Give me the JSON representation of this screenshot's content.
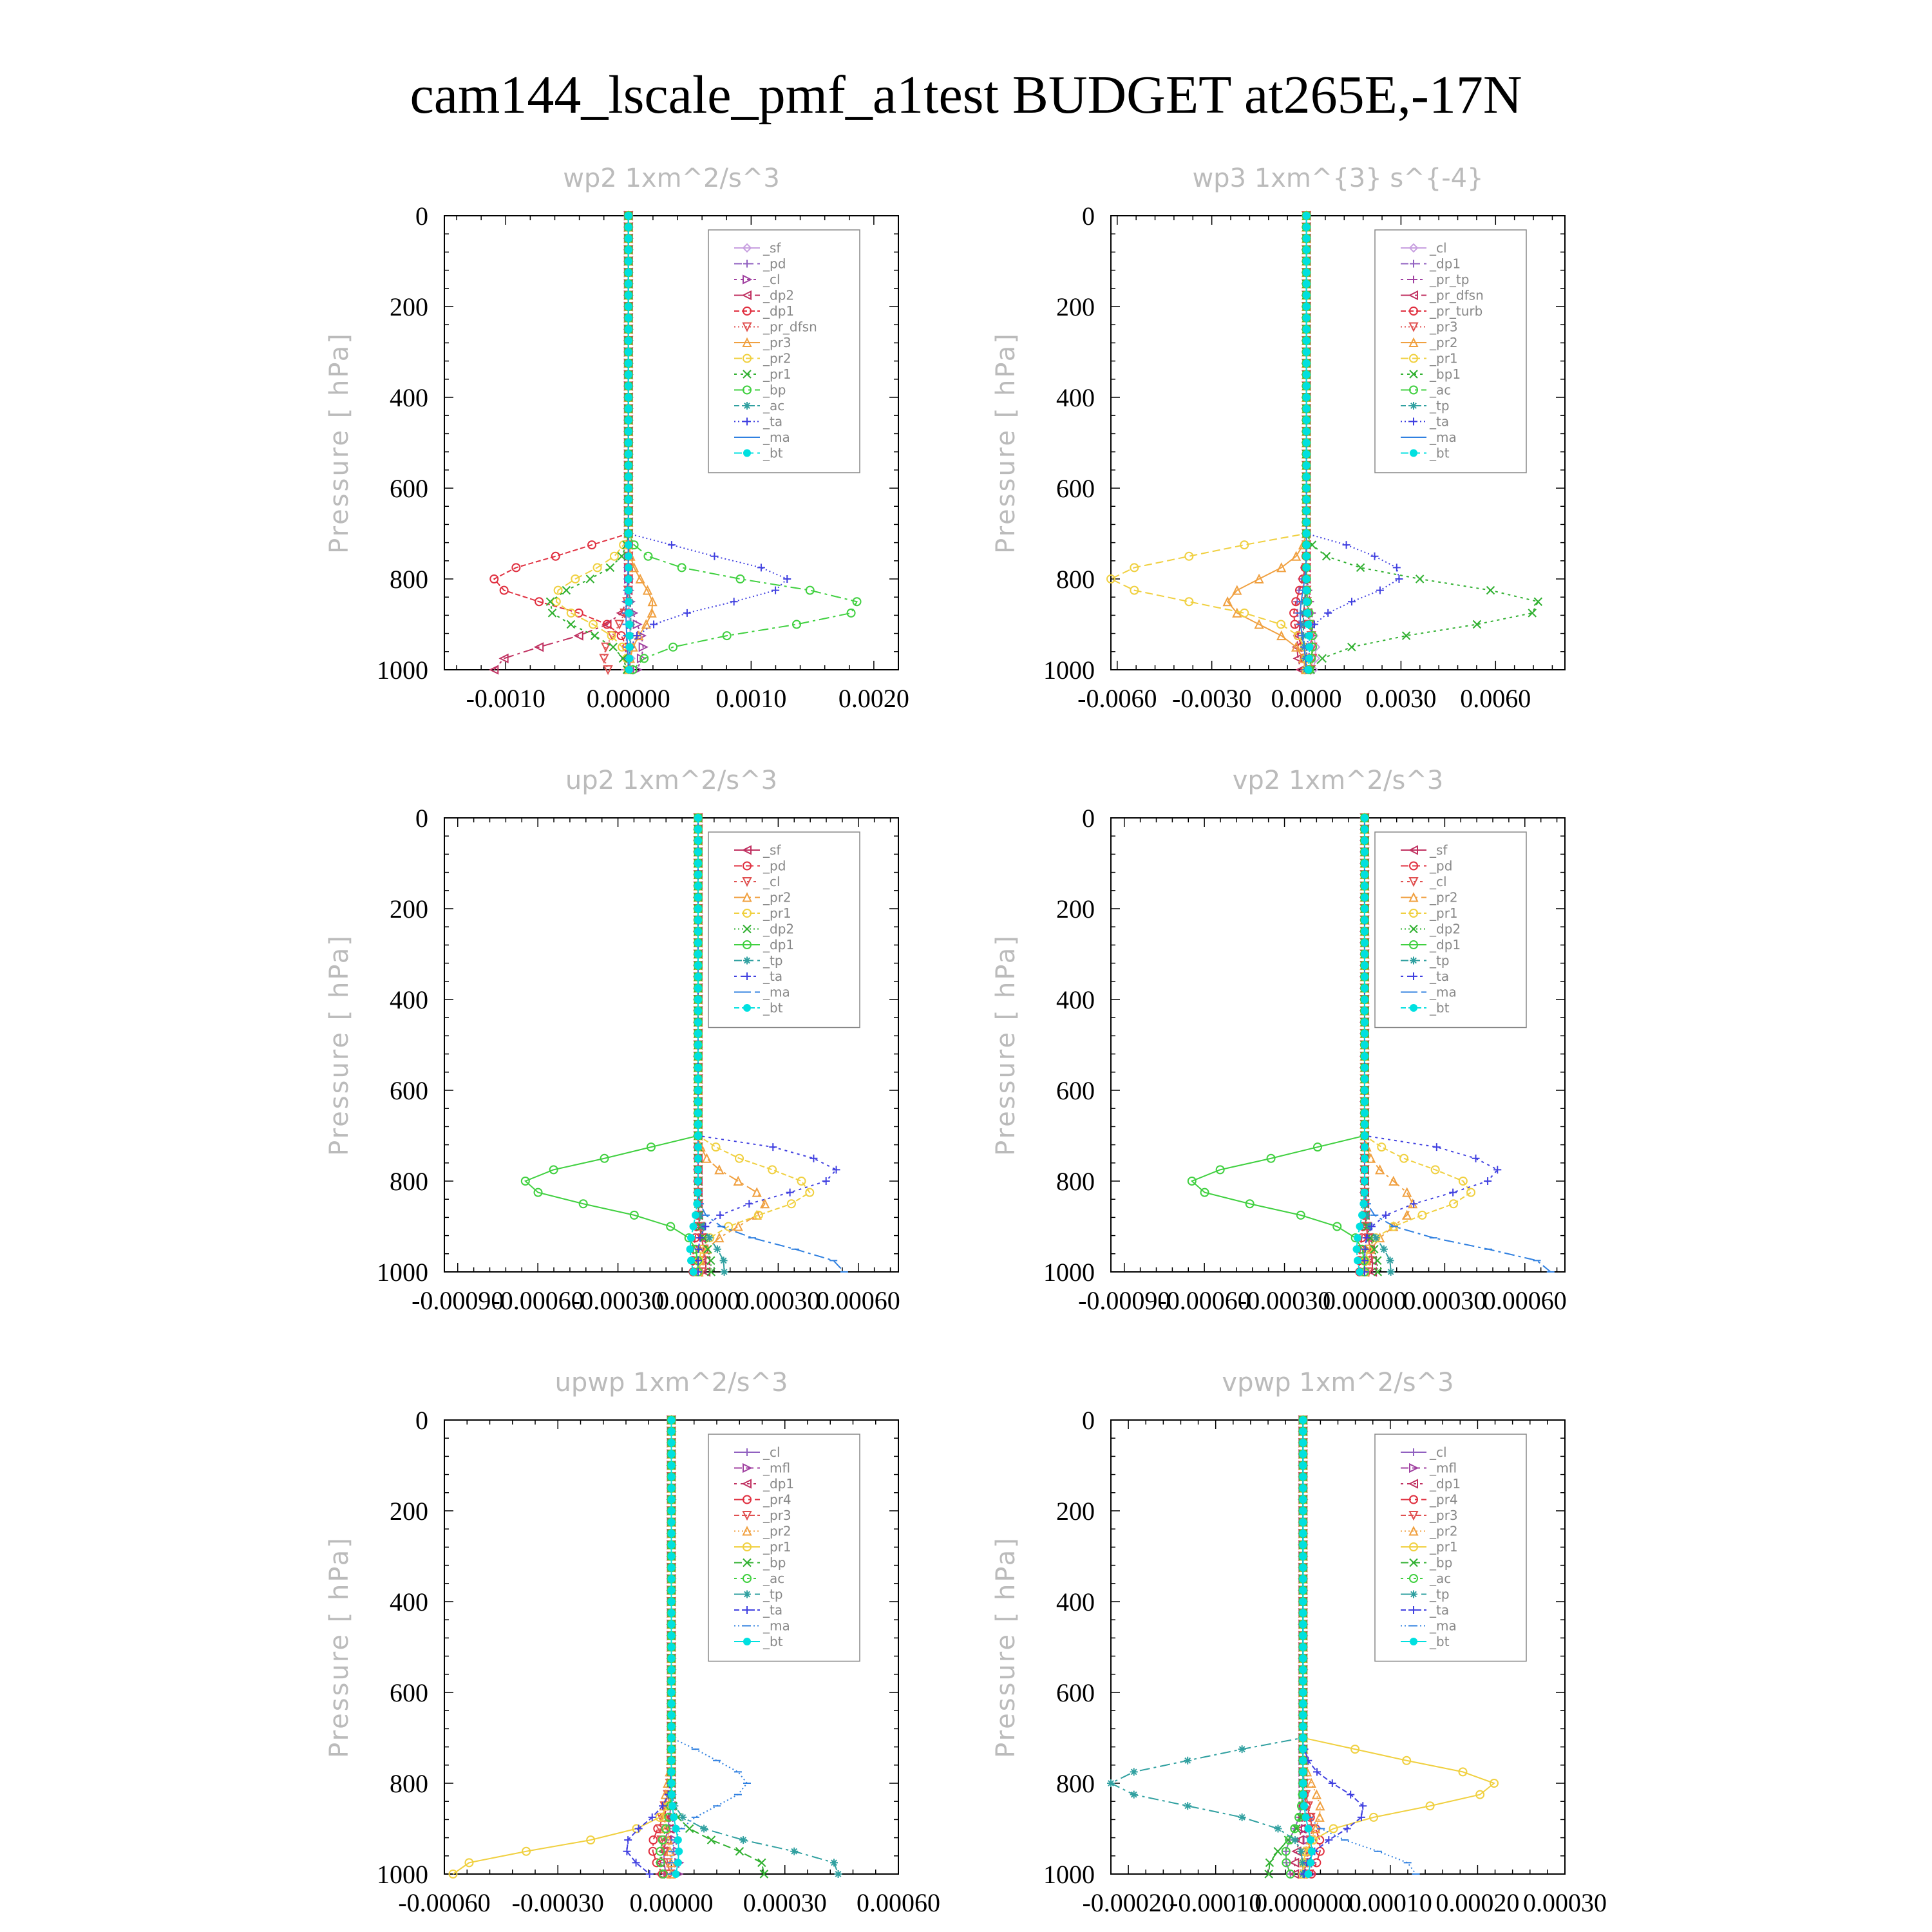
{
  "figure": {
    "title": "cam144_lscale_pmf_a1test  BUDGET at265E,-17N"
  },
  "chart_data": [
    {
      "type": "line",
      "title": "wp2   1xm^2/s^3",
      "ylabel": "Pressure  [ hPa]",
      "ylim": [
        1000,
        0
      ],
      "yticks": [
        "0",
        "200",
        "400",
        "600",
        "800",
        "1000"
      ],
      "xlim": [
        -0.0015,
        0.0022
      ],
      "xticks": [
        -0.001,
        0.0,
        0.001,
        0.002
      ],
      "xtick_labels": [
        "-0.0010",
        "0.00000",
        "0.0010",
        "0.0020"
      ],
      "legend_position": "top-right",
      "series": [
        {
          "name": "_sf",
          "color": "#c8a0e0",
          "marker": "diamond",
          "peak_x": 2e-05,
          "peak_p": 960
        },
        {
          "name": "_pd",
          "color": "#9060c0",
          "marker": "plus",
          "peak_x": -3e-05,
          "peak_p": 990
        },
        {
          "name": "_cl",
          "color": "#a040a0",
          "marker": "tri-right",
          "peak_x": 0.00012,
          "peak_p": 950
        },
        {
          "name": "_dp2",
          "color": "#c03060",
          "marker": "tri-left",
          "peak_x": -0.0011,
          "peak_p": 995
        },
        {
          "name": "_dp1",
          "color": "#e03040",
          "marker": "circle",
          "peak_x": -0.0011,
          "peak_p": 805
        },
        {
          "name": "_pr_dfsn",
          "color": "#e05050",
          "marker": "tri-down",
          "peak_x": -0.0002,
          "peak_p": 970
        },
        {
          "name": "_pr3",
          "color": "#f0a040",
          "marker": "tri-up",
          "peak_x": 0.0002,
          "peak_p": 860
        },
        {
          "name": "_pr2",
          "color": "#f0d040",
          "marker": "circle",
          "peak_x": -0.0006,
          "peak_p": 840
        },
        {
          "name": "_pr1",
          "color": "#30b030",
          "marker": "cross",
          "peak_x": -0.00065,
          "peak_p": 860
        },
        {
          "name": "_bp",
          "color": "#40d040",
          "marker": "circle",
          "peak_x": 0.0019,
          "peak_p": 860
        },
        {
          "name": "_ac",
          "color": "#30a0a0",
          "marker": "star",
          "peak_x": 2e-05,
          "peak_p": 900
        },
        {
          "name": "_ta",
          "color": "#4040e0",
          "marker": "plus",
          "peak_x": 0.0013,
          "peak_p": 805
        },
        {
          "name": "_ma",
          "color": "#3080e0",
          "marker": "dash",
          "peak_x": -2e-05,
          "peak_p": 880
        },
        {
          "name": "_bt",
          "color": "#00e0e0",
          "marker": "dot",
          "peak_x": 1e-05,
          "peak_p": 950
        }
      ]
    },
    {
      "type": "line",
      "title": "wp3   1xm^{3} s^{-4}",
      "ylabel": "Pressure  [ hPa]",
      "ylim": [
        1000,
        0
      ],
      "yticks": [
        "0",
        "200",
        "400",
        "600",
        "800",
        "1000"
      ],
      "xlim": [
        -0.0062,
        0.0082
      ],
      "xticks": [
        -0.006,
        -0.003,
        0.0,
        0.003,
        0.006
      ],
      "xtick_labels": [
        "-0.0060",
        "-0.0030",
        "0.0000",
        "0.0030",
        "0.0060"
      ],
      "legend_position": "top-right",
      "series": [
        {
          "name": "_cl",
          "color": "#c8a0e0",
          "marker": "diamond",
          "peak_x": 0.0003,
          "peak_p": 960
        },
        {
          "name": "_dp1",
          "color": "#9060c0",
          "marker": "plus",
          "peak_x": -0.0003,
          "peak_p": 860
        },
        {
          "name": "_pr_tp",
          "color": "#a040a0",
          "marker": "plus",
          "peak_x": 0.0002,
          "peak_p": 900
        },
        {
          "name": "_pr_dfsn",
          "color": "#c03060",
          "marker": "tri-left",
          "peak_x": -0.0003,
          "peak_p": 950
        },
        {
          "name": "_pr_turb",
          "color": "#e03040",
          "marker": "circle",
          "peak_x": -0.0004,
          "peak_p": 880
        },
        {
          "name": "_pr3",
          "color": "#e05050",
          "marker": "tri-down",
          "peak_x": 0.0002,
          "peak_p": 960
        },
        {
          "name": "_pr2",
          "color": "#f0a040",
          "marker": "tri-up",
          "peak_x": -0.0025,
          "peak_p": 850
        },
        {
          "name": "_pr1",
          "color": "#f0d040",
          "marker": "circle",
          "peak_x": -0.0062,
          "peak_p": 800
        },
        {
          "name": "_bp1",
          "color": "#30b030",
          "marker": "cross",
          "peak_x": 0.0075,
          "peak_p": 860
        },
        {
          "name": "_ac",
          "color": "#40d040",
          "marker": "circle",
          "peak_x": 0.0002,
          "peak_p": 940
        },
        {
          "name": "_tp",
          "color": "#30a0a0",
          "marker": "star",
          "peak_x": -0.0001,
          "peak_p": 900
        },
        {
          "name": "_ta",
          "color": "#4040e0",
          "marker": "plus",
          "peak_x": 0.003,
          "peak_p": 790
        },
        {
          "name": "_ma",
          "color": "#3080e0",
          "marker": "dash",
          "peak_x": -0.0002,
          "peak_p": 880
        },
        {
          "name": "_bt",
          "color": "#00e0e0",
          "marker": "dot",
          "peak_x": 0.0001,
          "peak_p": 950
        }
      ]
    },
    {
      "type": "line",
      "title": "up2   1xm^2/s^3",
      "ylabel": "Pressure  [ hPa]",
      "ylim": [
        1000,
        0
      ],
      "yticks": [
        "0",
        "200",
        "400",
        "600",
        "800",
        "1000"
      ],
      "xlim": [
        -0.00095,
        0.00075
      ],
      "xticks": [
        -0.0009,
        -0.0006,
        -0.0003,
        0.0,
        0.0003,
        0.0006
      ],
      "xtick_labels": [
        "-0.00090",
        "-0.00060",
        "-0.00030",
        "0.00000",
        "0.00030",
        "0.00060"
      ],
      "legend_position": "top-right",
      "series": [
        {
          "name": "_sf",
          "color": "#c03060",
          "marker": "tri-left",
          "peak_x": 3e-05,
          "peak_p": 990
        },
        {
          "name": "_pd",
          "color": "#e03040",
          "marker": "circle",
          "peak_x": -2e-05,
          "peak_p": 980
        },
        {
          "name": "_cl",
          "color": "#e05050",
          "marker": "tri-down",
          "peak_x": 2e-05,
          "peak_p": 960
        },
        {
          "name": "_pr2",
          "color": "#f0a040",
          "marker": "tri-up",
          "peak_x": 0.00025,
          "peak_p": 850
        },
        {
          "name": "_pr1",
          "color": "#f0d040",
          "marker": "circle",
          "peak_x": 0.00042,
          "peak_p": 820
        },
        {
          "name": "_dp2",
          "color": "#30b030",
          "marker": "cross",
          "peak_x": 5e-05,
          "peak_p": 990
        },
        {
          "name": "_dp1",
          "color": "#40d040",
          "marker": "circle",
          "peak_x": -0.00065,
          "peak_p": 805
        },
        {
          "name": "_tp",
          "color": "#30a0a0",
          "marker": "star",
          "peak_x": 0.0001,
          "peak_p": 990
        },
        {
          "name": "_ta",
          "color": "#4040e0",
          "marker": "plus",
          "peak_x": 0.00052,
          "peak_p": 780
        },
        {
          "name": "_ma",
          "color": "#3080e0",
          "marker": "dash",
          "peak_x": 0.00055,
          "peak_p": 995
        },
        {
          "name": "_bt",
          "color": "#00e0e0",
          "marker": "dot",
          "peak_x": -3e-05,
          "peak_p": 950
        }
      ]
    },
    {
      "type": "line",
      "title": "vp2   1xm^2/s^3",
      "ylabel": "Pressure  [ hPa]",
      "ylim": [
        1000,
        0
      ],
      "yticks": [
        "0",
        "200",
        "400",
        "600",
        "800",
        "1000"
      ],
      "xlim": [
        -0.00095,
        0.00075
      ],
      "xticks": [
        -0.0009,
        -0.0006,
        -0.0003,
        0.0,
        0.0003,
        0.0006
      ],
      "xtick_labels": [
        "-0.00090",
        "-0.00060",
        "-0.00030",
        "0.00000",
        "0.00030",
        "0.00060"
      ],
      "legend_position": "top-right",
      "series": [
        {
          "name": "_sf",
          "color": "#c03060",
          "marker": "tri-left",
          "peak_x": 3e-05,
          "peak_p": 990
        },
        {
          "name": "_pd",
          "color": "#e03040",
          "marker": "circle",
          "peak_x": -2e-05,
          "peak_p": 980
        },
        {
          "name": "_cl",
          "color": "#e05050",
          "marker": "tri-down",
          "peak_x": 2e-05,
          "peak_p": 960
        },
        {
          "name": "_pr2",
          "color": "#f0a040",
          "marker": "tri-up",
          "peak_x": 0.00018,
          "peak_p": 850
        },
        {
          "name": "_pr1",
          "color": "#f0d040",
          "marker": "circle",
          "peak_x": 0.0004,
          "peak_p": 820
        },
        {
          "name": "_dp2",
          "color": "#30b030",
          "marker": "cross",
          "peak_x": 5e-05,
          "peak_p": 990
        },
        {
          "name": "_dp1",
          "color": "#40d040",
          "marker": "circle",
          "peak_x": -0.00065,
          "peak_p": 805
        },
        {
          "name": "_tp",
          "color": "#30a0a0",
          "marker": "star",
          "peak_x": 0.0001,
          "peak_p": 990
        },
        {
          "name": "_ta",
          "color": "#4040e0",
          "marker": "plus",
          "peak_x": 0.0005,
          "peak_p": 780
        },
        {
          "name": "_ma",
          "color": "#3080e0",
          "marker": "dash",
          "peak_x": 0.0007,
          "peak_p": 995
        },
        {
          "name": "_bt",
          "color": "#00e0e0",
          "marker": "dot",
          "peak_x": -3e-05,
          "peak_p": 950
        }
      ]
    },
    {
      "type": "line",
      "title": "upwp   1xm^2/s^3",
      "ylabel": "Pressure  [ hPa]",
      "ylim": [
        1000,
        0
      ],
      "yticks": [
        "0",
        "200",
        "400",
        "600",
        "800",
        "1000"
      ],
      "xlim": [
        -0.0006,
        0.0006
      ],
      "xticks": [
        -0.0006,
        -0.0003,
        0.0,
        0.0003,
        0.0006
      ],
      "xtick_labels": [
        "-0.00060",
        "-0.00030",
        "0.00000",
        "0.00030",
        "0.00060"
      ],
      "legend_position": "top-right",
      "series": [
        {
          "name": "_cl",
          "color": "#9060c0",
          "marker": "plus",
          "peak_x": -2e-05,
          "peak_p": 960
        },
        {
          "name": "_mfl",
          "color": "#a040a0",
          "marker": "tri-right",
          "peak_x": 2e-05,
          "peak_p": 980
        },
        {
          "name": "_dp1",
          "color": "#c03060",
          "marker": "tri-left",
          "peak_x": -3e-05,
          "peak_p": 990
        },
        {
          "name": "_pr4",
          "color": "#e03040",
          "marker": "circle",
          "peak_x": -5e-05,
          "peak_p": 940
        },
        {
          "name": "_pr3",
          "color": "#e05050",
          "marker": "tri-down",
          "peak_x": -3e-05,
          "peak_p": 900
        },
        {
          "name": "_pr2",
          "color": "#f0a040",
          "marker": "tri-up",
          "peak_x": -2e-05,
          "peak_p": 860
        },
        {
          "name": "_pr1",
          "color": "#f0d040",
          "marker": "circle",
          "peak_x": -0.00058,
          "peak_p": 995
        },
        {
          "name": "_bp",
          "color": "#30b030",
          "marker": "cross",
          "peak_x": 0.00025,
          "peak_p": 990
        },
        {
          "name": "_ac",
          "color": "#40d040",
          "marker": "circle",
          "peak_x": -3e-05,
          "peak_p": 960
        },
        {
          "name": "_tp",
          "color": "#30a0a0",
          "marker": "star",
          "peak_x": 0.00045,
          "peak_p": 990
        },
        {
          "name": "_ta",
          "color": "#4040e0",
          "marker": "plus",
          "peak_x": -0.00012,
          "peak_p": 940
        },
        {
          "name": "_ma",
          "color": "#3080e0",
          "marker": "dash",
          "peak_x": 0.0002,
          "peak_p": 800
        },
        {
          "name": "_bt",
          "color": "#00e0e0",
          "marker": "dot",
          "peak_x": 2e-05,
          "peak_p": 950
        }
      ]
    },
    {
      "type": "line",
      "title": "vpwp   1xm^2/s^3",
      "ylabel": "Pressure  [ hPa]",
      "ylim": [
        1000,
        0
      ],
      "yticks": [
        "0",
        "200",
        "400",
        "600",
        "800",
        "1000"
      ],
      "xlim": [
        -0.00022,
        0.0003
      ],
      "xticks": [
        -0.0002,
        -0.0001,
        0.0,
        0.0001,
        0.0002,
        0.0003
      ],
      "xtick_labels": [
        "-0.00020",
        "-0.00010",
        "0.000000",
        "0.00010",
        "0.00020",
        "0.00030"
      ],
      "legend_position": "top-right",
      "series": [
        {
          "name": "_cl",
          "color": "#9060c0",
          "marker": "plus",
          "peak_x": -2e-05,
          "peak_p": 960
        },
        {
          "name": "_mfl",
          "color": "#a040a0",
          "marker": "tri-right",
          "peak_x": 1e-05,
          "peak_p": 980
        },
        {
          "name": "_dp1",
          "color": "#c03060",
          "marker": "tri-left",
          "peak_x": -1e-05,
          "peak_p": 990
        },
        {
          "name": "_pr4",
          "color": "#e03040",
          "marker": "circle",
          "peak_x": 2e-05,
          "peak_p": 940
        },
        {
          "name": "_pr3",
          "color": "#e05050",
          "marker": "tri-down",
          "peak_x": 1e-05,
          "peak_p": 900
        },
        {
          "name": "_pr2",
          "color": "#f0a040",
          "marker": "tri-up",
          "peak_x": 2e-05,
          "peak_p": 860
        },
        {
          "name": "_pr1",
          "color": "#f0d040",
          "marker": "circle",
          "peak_x": 0.00022,
          "peak_p": 805
        },
        {
          "name": "_bp",
          "color": "#30b030",
          "marker": "cross",
          "peak_x": -4e-05,
          "peak_p": 990
        },
        {
          "name": "_ac",
          "color": "#40d040",
          "marker": "circle",
          "peak_x": -2e-05,
          "peak_p": 960
        },
        {
          "name": "_tp",
          "color": "#30a0a0",
          "marker": "star",
          "peak_x": -0.00022,
          "peak_p": 800
        },
        {
          "name": "_ta",
          "color": "#4040e0",
          "marker": "plus",
          "peak_x": 7e-05,
          "peak_p": 860
        },
        {
          "name": "_ma",
          "color": "#3080e0",
          "marker": "dash",
          "peak_x": 0.00013,
          "peak_p": 995
        },
        {
          "name": "_bt",
          "color": "#00e0e0",
          "marker": "dot",
          "peak_x": 1e-05,
          "peak_p": 950
        }
      ]
    }
  ]
}
